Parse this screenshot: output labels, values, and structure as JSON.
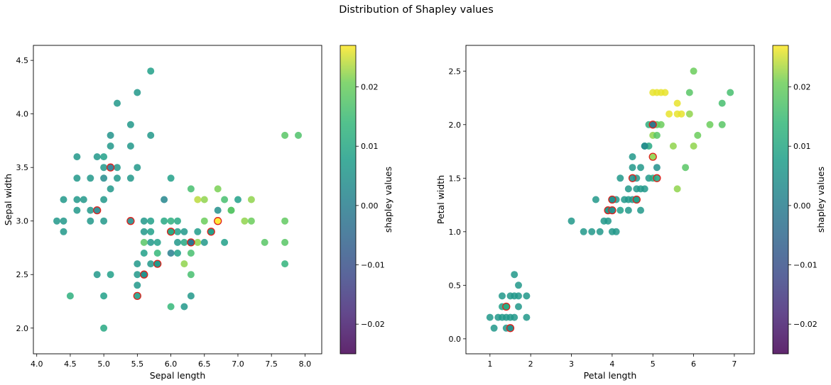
{
  "figure": {
    "title": "Distribution of Shapley values"
  },
  "chart_data": [
    {
      "type": "scatter",
      "xlabel": "Sepal length",
      "ylabel": "Sepal width",
      "xlim": [
        3.95,
        8.25
      ],
      "ylim": [
        1.76,
        4.64
      ],
      "xticks": [
        "4.0",
        "4.5",
        "5.0",
        "5.5",
        "6.0",
        "6.5",
        "7.0",
        "7.5",
        "8.0"
      ],
      "yticks": [
        "2.0",
        "2.5",
        "3.0",
        "3.5",
        "4.0",
        "4.5"
      ],
      "colorbar": {
        "label": "shapley values",
        "range": [
          -0.025,
          0.027
        ],
        "ticks": [
          "−0.02",
          "−0.01",
          "0.00",
          "0.01",
          "0.02"
        ]
      },
      "points": [
        [
          5.7,
          4.4,
          0.008
        ],
        [
          5.5,
          4.2,
          0.006
        ],
        [
          5.2,
          4.1,
          0.006
        ],
        [
          5.4,
          3.9,
          0.006
        ],
        [
          5.1,
          3.8,
          0.005
        ],
        [
          5.7,
          3.8,
          0.006
        ],
        [
          7.7,
          3.8,
          0.018
        ],
        [
          7.9,
          3.8,
          0.017
        ],
        [
          5.1,
          3.7,
          0.006
        ],
        [
          5.4,
          3.7,
          0.006
        ],
        [
          4.6,
          3.6,
          0.006
        ],
        [
          4.9,
          3.6,
          0.006
        ],
        [
          5.0,
          3.6,
          0.008
        ],
        [
          5.0,
          3.5,
          0.006
        ],
        [
          5.2,
          3.5,
          0.006
        ],
        [
          5.5,
          3.5,
          0.006
        ],
        [
          4.6,
          3.4,
          0.006
        ],
        [
          4.8,
          3.4,
          0.006
        ],
        [
          5.0,
          3.4,
          0.003
        ],
        [
          5.2,
          3.4,
          0.006
        ],
        [
          5.4,
          3.4,
          0.006
        ],
        [
          6.0,
          3.4,
          0.008
        ],
        [
          6.3,
          3.3,
          0.016
        ],
        [
          6.7,
          3.3,
          0.021
        ],
        [
          5.1,
          3.3,
          0.006
        ],
        [
          4.4,
          3.2,
          0.006
        ],
        [
          4.6,
          3.2,
          0.006
        ],
        [
          4.7,
          3.2,
          0.006
        ],
        [
          5.0,
          3.2,
          0.006
        ],
        [
          5.9,
          3.2,
          0.002
        ],
        [
          6.4,
          3.2,
          0.024
        ],
        [
          6.5,
          3.2,
          0.022
        ],
        [
          6.8,
          3.2,
          0.016
        ],
        [
          6.9,
          3.1,
          0.017
        ],
        [
          7.0,
          3.2,
          0.008
        ],
        [
          7.2,
          3.2,
          0.022
        ],
        [
          4.6,
          3.1,
          0.006
        ],
        [
          4.8,
          3.1,
          0.006
        ],
        [
          6.7,
          3.1,
          0.004
        ],
        [
          6.9,
          3.1,
          0.018
        ],
        [
          4.3,
          3.0,
          0.006
        ],
        [
          4.4,
          3.0,
          0.006
        ],
        [
          4.8,
          3.0,
          0.006
        ],
        [
          5.0,
          3.0,
          0.006
        ],
        [
          5.6,
          3.0,
          0.006
        ],
        [
          5.7,
          3.0,
          0.008
        ],
        [
          5.9,
          3.0,
          0.01
        ],
        [
          6.0,
          3.0,
          0.012
        ],
        [
          6.1,
          3.0,
          0.01
        ],
        [
          6.5,
          3.0,
          0.02
        ],
        [
          7.1,
          3.0,
          0.022
        ],
        [
          7.2,
          3.0,
          0.02
        ],
        [
          7.7,
          3.0,
          0.019
        ],
        [
          4.4,
          2.9,
          0.006
        ],
        [
          5.6,
          2.9,
          0.006
        ],
        [
          5.7,
          2.9,
          0.008
        ],
        [
          6.0,
          2.9,
          0.012
        ],
        [
          6.1,
          2.9,
          0.008
        ],
        [
          6.2,
          2.9,
          0.006
        ],
        [
          6.4,
          2.9,
          0.007
        ],
        [
          6.6,
          2.9,
          0.006
        ],
        [
          5.7,
          2.8,
          0.006
        ],
        [
          5.8,
          2.8,
          0.008
        ],
        [
          6.1,
          2.8,
          0.006
        ],
        [
          6.2,
          2.8,
          0.01
        ],
        [
          6.3,
          2.8,
          0.006
        ],
        [
          6.4,
          2.8,
          0.022
        ],
        [
          6.5,
          2.8,
          0.006
        ],
        [
          6.8,
          2.8,
          0.008
        ],
        [
          7.4,
          2.8,
          0.018
        ],
        [
          7.7,
          2.8,
          0.018
        ],
        [
          5.6,
          2.8,
          0.018
        ],
        [
          5.8,
          2.7,
          0.014
        ],
        [
          6.0,
          2.7,
          0.0
        ],
        [
          6.1,
          2.7,
          0.008
        ],
        [
          6.3,
          2.7,
          0.016
        ],
        [
          5.6,
          2.7,
          0.008
        ],
        [
          6.2,
          2.6,
          0.022
        ],
        [
          5.5,
          2.6,
          0.006
        ],
        [
          5.7,
          2.6,
          0.006
        ],
        [
          5.8,
          2.6,
          0.008
        ],
        [
          7.7,
          2.6,
          0.013
        ],
        [
          4.9,
          2.5,
          0.006
        ],
        [
          5.1,
          2.5,
          0.008
        ],
        [
          5.5,
          2.5,
          0.006
        ],
        [
          5.6,
          2.5,
          0.008
        ],
        [
          6.3,
          2.5,
          0.016
        ],
        [
          5.5,
          2.4,
          0.006
        ],
        [
          4.5,
          2.3,
          0.012
        ],
        [
          5.0,
          2.3,
          0.008
        ],
        [
          6.3,
          2.3,
          0.006
        ],
        [
          6.0,
          2.2,
          0.014
        ],
        [
          6.2,
          2.2,
          0.006
        ],
        [
          5.0,
          2.0,
          0.01
        ]
      ],
      "highlighted": [
        [
          5.1,
          3.5,
          -0.002
        ],
        [
          4.9,
          3.1,
          0.002
        ],
        [
          5.4,
          3.0,
          0.004
        ],
        [
          6.3,
          2.8,
          -0.004
        ],
        [
          6.0,
          2.9,
          0.01
        ],
        [
          6.6,
          2.9,
          0.008
        ],
        [
          6.7,
          3.0,
          0.027
        ],
        [
          5.8,
          2.6,
          0.006
        ],
        [
          5.6,
          2.5,
          0.004
        ],
        [
          5.5,
          2.3,
          0.008
        ]
      ]
    },
    {
      "type": "scatter",
      "xlabel": "Petal length",
      "ylabel": "Petal width",
      "xlim": [
        0.41,
        7.49
      ],
      "ylim": [
        -0.14,
        2.74
      ],
      "xticks": [
        "1",
        "2",
        "3",
        "4",
        "5",
        "6",
        "7"
      ],
      "yticks": [
        "0.0",
        "0.5",
        "1.0",
        "1.5",
        "2.0",
        "2.5"
      ],
      "colorbar": {
        "label": "shapley values",
        "range": [
          -0.025,
          0.027
        ],
        "ticks": [
          "−0.02",
          "−0.01",
          "0.00",
          "0.01",
          "0.02"
        ]
      },
      "points": [
        [
          1.0,
          0.2,
          0.006
        ],
        [
          1.1,
          0.1,
          0.006
        ],
        [
          1.2,
          0.2,
          0.006
        ],
        [
          1.3,
          0.2,
          0.006
        ],
        [
          1.3,
          0.3,
          0.008
        ],
        [
          1.3,
          0.4,
          0.006
        ],
        [
          1.4,
          0.1,
          0.006
        ],
        [
          1.4,
          0.2,
          0.006
        ],
        [
          1.4,
          0.3,
          0.016
        ],
        [
          1.5,
          0.1,
          0.006
        ],
        [
          1.5,
          0.2,
          0.006
        ],
        [
          1.5,
          0.4,
          0.006
        ],
        [
          1.6,
          0.2,
          0.006
        ],
        [
          1.6,
          0.4,
          0.006
        ],
        [
          1.6,
          0.6,
          0.006
        ],
        [
          1.7,
          0.3,
          0.006
        ],
        [
          1.7,
          0.4,
          0.006
        ],
        [
          1.7,
          0.5,
          0.006
        ],
        [
          1.9,
          0.2,
          0.006
        ],
        [
          1.9,
          0.4,
          0.006
        ],
        [
          3.0,
          1.1,
          0.006
        ],
        [
          3.3,
          1.0,
          0.006
        ],
        [
          3.5,
          1.0,
          0.006
        ],
        [
          3.6,
          1.3,
          0.006
        ],
        [
          3.7,
          1.0,
          0.006
        ],
        [
          3.8,
          1.1,
          0.006
        ],
        [
          3.9,
          1.1,
          0.006
        ],
        [
          3.9,
          1.2,
          0.008
        ],
        [
          4.0,
          1.0,
          0.006
        ],
        [
          4.0,
          1.2,
          0.006
        ],
        [
          4.0,
          1.3,
          0.006
        ],
        [
          4.1,
          1.0,
          0.006
        ],
        [
          4.1,
          1.3,
          0.006
        ],
        [
          4.2,
          1.2,
          0.008
        ],
        [
          4.2,
          1.5,
          0.006
        ],
        [
          4.3,
          1.3,
          0.006
        ],
        [
          4.4,
          1.2,
          0.006
        ],
        [
          4.4,
          1.3,
          0.006
        ],
        [
          4.4,
          1.4,
          0.006
        ],
        [
          4.5,
          1.3,
          0.006
        ],
        [
          4.5,
          1.6,
          0.006
        ],
        [
          4.5,
          1.7,
          0.006
        ],
        [
          4.6,
          1.3,
          0.006
        ],
        [
          4.6,
          1.4,
          0.006
        ],
        [
          4.6,
          1.5,
          0.006
        ],
        [
          4.7,
          1.2,
          0.006
        ],
        [
          4.7,
          1.4,
          0.006
        ],
        [
          4.7,
          1.6,
          0.006
        ],
        [
          4.8,
          1.4,
          0.006
        ],
        [
          4.8,
          1.8,
          0.008
        ],
        [
          4.9,
          1.5,
          0.006
        ],
        [
          4.9,
          1.8,
          0.01
        ],
        [
          4.9,
          2.0,
          0.012
        ],
        [
          5.0,
          1.5,
          0.01
        ],
        [
          5.0,
          1.9,
          0.022
        ],
        [
          5.0,
          2.0,
          0.018
        ],
        [
          5.1,
          1.9,
          0.018
        ],
        [
          5.1,
          1.6,
          0.004
        ],
        [
          5.1,
          2.0,
          0.018
        ],
        [
          5.2,
          2.0,
          0.02
        ],
        [
          5.0,
          2.3,
          0.026
        ],
        [
          5.1,
          2.3,
          0.026
        ],
        [
          5.2,
          2.3,
          0.026
        ],
        [
          5.3,
          2.3,
          0.026
        ],
        [
          5.4,
          2.1,
          0.026
        ],
        [
          5.5,
          1.8,
          0.022
        ],
        [
          5.6,
          1.4,
          0.022
        ],
        [
          5.6,
          2.1,
          0.026
        ],
        [
          5.6,
          2.2,
          0.026
        ],
        [
          5.7,
          2.1,
          0.026
        ],
        [
          5.8,
          1.6,
          0.018
        ],
        [
          5.9,
          2.1,
          0.022
        ],
        [
          5.9,
          2.3,
          0.018
        ],
        [
          6.0,
          1.8,
          0.022
        ],
        [
          6.0,
          2.5,
          0.02
        ],
        [
          6.1,
          1.9,
          0.02
        ],
        [
          6.4,
          2.0,
          0.02
        ],
        [
          6.7,
          2.0,
          0.018
        ],
        [
          6.7,
          2.2,
          0.016
        ],
        [
          6.9,
          2.3,
          0.016
        ],
        [
          4.8,
          1.8,
          0.003
        ]
      ],
      "highlighted": [
        [
          5.0,
          2.0,
          -0.004
        ],
        [
          5.0,
          1.7,
          0.022
        ],
        [
          4.0,
          1.3,
          0.004
        ],
        [
          4.5,
          1.5,
          0.004
        ],
        [
          4.6,
          1.3,
          0.008
        ],
        [
          5.1,
          1.5,
          0.01
        ],
        [
          3.9,
          1.2,
          0.006
        ],
        [
          4.0,
          1.2,
          0.004
        ],
        [
          1.4,
          0.3,
          0.01
        ],
        [
          1.5,
          0.1,
          0.004
        ]
      ]
    }
  ]
}
